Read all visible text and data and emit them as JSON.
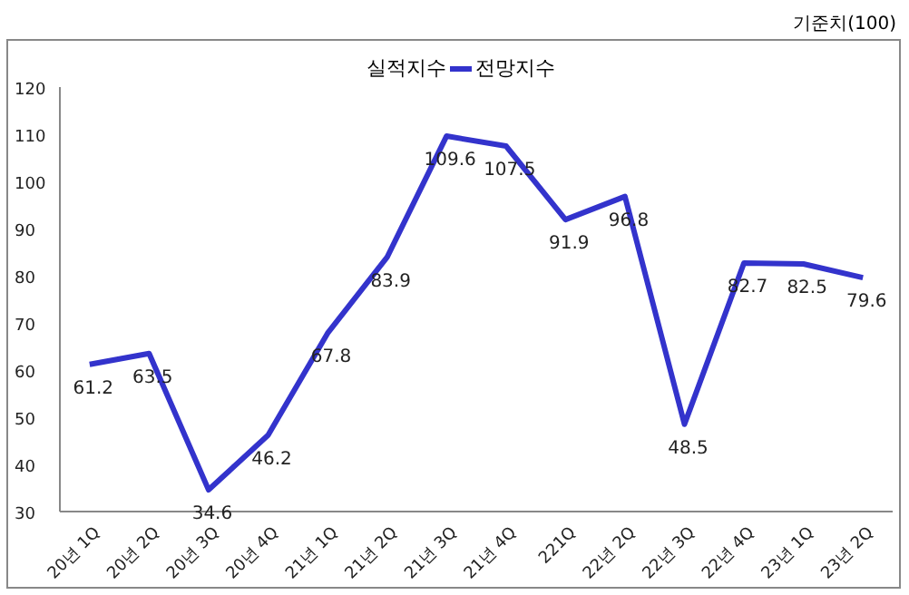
{
  "chart_data": {
    "type": "line",
    "annotations": [
      "기준치(100)",
      "실적지수"
    ],
    "categories": [
      "20년 1Q",
      "20년 2Q",
      "20년 3Q",
      "20년 4Q",
      "21년 1Q",
      "21년 2Q",
      "21년 3Q",
      "21년 4Q",
      "221Q",
      "22년 2Q",
      "22년 3Q",
      "22년 4Q",
      "23년 1Q",
      "23년 2Q"
    ],
    "series": [
      {
        "name": "전망지수",
        "color": "#3333cc",
        "values": [
          61.2,
          63.5,
          34.6,
          46.2,
          67.8,
          83.9,
          109.6,
          107.5,
          91.9,
          96.8,
          48.5,
          82.7,
          82.5,
          79.6
        ]
      }
    ],
    "ylim": [
      30,
      120
    ],
    "yticks": [
      30,
      40,
      50,
      60,
      70,
      80,
      90,
      100,
      110,
      120
    ],
    "grid": false,
    "legend": "top",
    "data_labels": true,
    "marker": "none",
    "line_style": "solid"
  }
}
